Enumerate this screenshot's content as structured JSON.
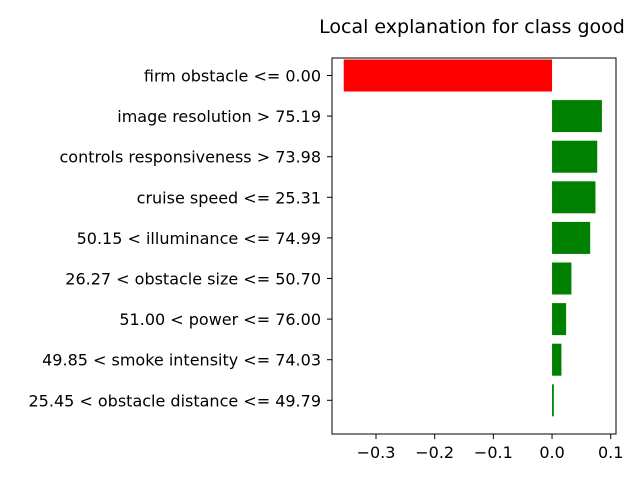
{
  "chart_data": {
    "type": "bar",
    "orientation": "horizontal",
    "title": "Local explanation for class good",
    "xlabel": "",
    "ylabel": "",
    "categories": [
      "firm obstacle <= 0.00",
      "image resolution > 75.19",
      "controls responsiveness > 73.98",
      "cruise speed <= 25.31",
      "50.15 < illuminance <= 74.99",
      "26.27 < obstacle size <= 50.70",
      "51.00 < power <= 76.00",
      "49.85 < smoke intensity <= 74.03",
      "25.45 < obstacle distance <= 49.79"
    ],
    "values": [
      -0.355,
      0.085,
      0.077,
      0.074,
      0.065,
      0.033,
      0.024,
      0.016,
      0.003
    ],
    "colors": {
      "positive": "#008000",
      "negative": "#ff0000"
    },
    "xlim": [
      -0.375,
      0.109
    ],
    "xticks": [
      -0.3,
      -0.2,
      -0.1,
      0.0,
      0.1
    ],
    "xtick_labels": [
      "−0.3",
      "−0.2",
      "−0.1",
      "0.0",
      "0.1"
    ],
    "grid": false,
    "legend": "none"
  }
}
